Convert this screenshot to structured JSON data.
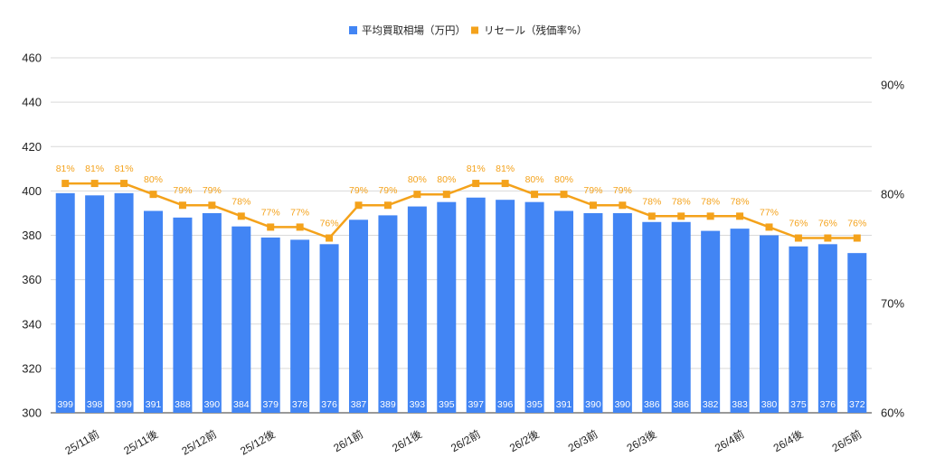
{
  "chart_data": {
    "type": "bar",
    "categories": [
      "",
      "25/11前",
      "",
      "25/11後",
      "",
      "25/12前",
      "",
      "25/12後",
      "",
      "",
      "26/1前",
      "",
      "26/1後",
      "",
      "26/2前",
      "",
      "26/2後",
      "",
      "26/3前",
      "",
      "26/3後",
      "",
      "",
      "26/4前",
      "",
      "26/4後",
      "",
      "26/5前"
    ],
    "series": [
      {
        "name": "平均買取相場（万円）",
        "type": "bar",
        "axis": "left",
        "color": "#4285f4",
        "values": [
          399,
          398,
          399,
          391,
          388,
          390,
          384,
          379,
          378,
          376,
          387,
          389,
          393,
          395,
          397,
          396,
          395,
          391,
          390,
          390,
          386,
          386,
          382,
          383,
          380,
          375,
          376,
          372
        ]
      },
      {
        "name": "リセール（残価率%）",
        "type": "line",
        "axis": "right",
        "color": "#f4a21b",
        "values": [
          81,
          81,
          81,
          80,
          79,
          79,
          78,
          77,
          77,
          76,
          79,
          79,
          80,
          80,
          81,
          81,
          80,
          80,
          79,
          79,
          78,
          78,
          78,
          78,
          77,
          76,
          76,
          76
        ]
      }
    ],
    "y_left": {
      "lim": [
        300,
        460
      ],
      "ticks": [
        "300",
        "320",
        "340",
        "360",
        "380",
        "400",
        "420",
        "440",
        "460"
      ]
    },
    "y_right": {
      "lim": [
        60,
        92.5
      ],
      "ticks": [
        "60%",
        "70%",
        "80%",
        "90%"
      ]
    },
    "grid": true,
    "legend": "top-center"
  }
}
